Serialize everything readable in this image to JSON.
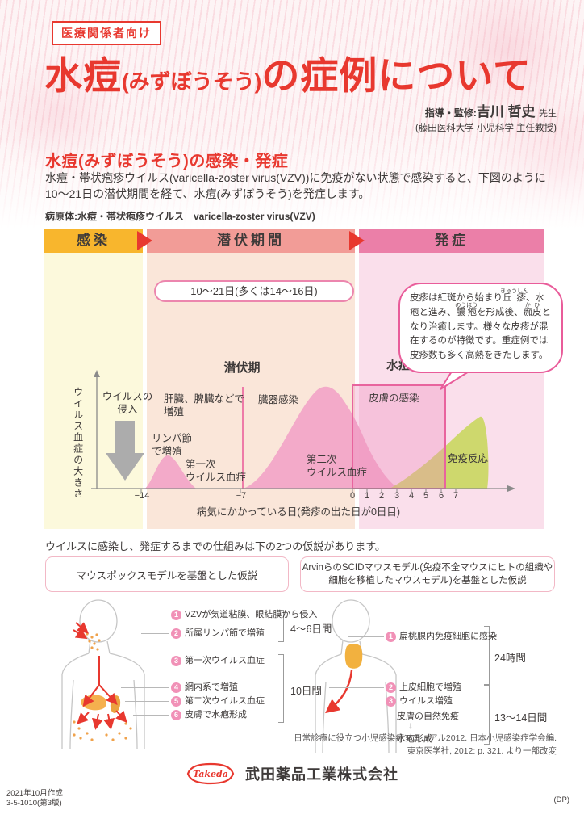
{
  "colors": {
    "accent_red": "#E8382F",
    "phase_infection_header": "#F8B62D",
    "phase_infection_bg": "#FCF9DC",
    "phase_incubation_header": "#F29C97",
    "phase_incubation_bg": "#FAE6D9",
    "phase_onset_header": "#EB7FA8",
    "phase_onset_bg": "#FADFEB",
    "curve_pink": "#F2A3C7",
    "immune_green": "#C3D64E",
    "bubble_border": "#E95C9A",
    "gray_arrow": "#ACACAC"
  },
  "header": {
    "badge": "医療関係者向け",
    "title": {
      "main": "水痘",
      "kana": "(みずぼうそう)",
      "rest": "の症例について"
    },
    "credit": {
      "label": "指導・監修:",
      "name": "吉川 哲史",
      "honorific": "先生",
      "affiliation": "(藤田医科大学 小児科学 主任教授)"
    }
  },
  "intro": {
    "heading": "水痘(みずぼうそう)の感染・発症",
    "body_line1": "水痘・帯状疱疹ウイルス(varicella-zoster virus(VZV))に免疫がない状態で感染すると、下図のように",
    "body_line2": "10〜21日の潜伏期間を経て、水痘(みずぼうそう)を発症します。",
    "pathogen": "病原体:水痘・帯状疱疹ウイルス　varicella-zoster virus(VZV)"
  },
  "diagram": {
    "phase_headers": [
      {
        "label": "感染"
      },
      {
        "label": "潜伏期間"
      },
      {
        "label": "発症"
      }
    ],
    "duration_pill": "10〜21日(多くは14〜16日)",
    "bubble_segments": [
      {
        "t": "皮疹は紅斑から始まり"
      },
      {
        "t": "丘疹",
        "r": "きゅうしん"
      },
      {
        "t": "、水疱と進み、"
      },
      {
        "t": "膿疱",
        "r": "のうほう"
      },
      {
        "t": "を形成後、"
      },
      {
        "t": "痂皮",
        "r": "かひ"
      },
      {
        "t": "となり治癒します。様々な皮疹が混在するのが特徴です。重症例では皮疹数も多く高熱をきたします。"
      }
    ],
    "y_axis_label": "ウイルス血症の大きさ",
    "x_axis_title": "病気にかかっている日(発疹の出た日が0日目)",
    "x_ticks": [
      "−14",
      "−7",
      "0",
      "1",
      "2",
      "3",
      "4",
      "5",
      "6",
      "7"
    ],
    "labels": {
      "virus_entry": "ウイルスの\n侵入",
      "liver": "肝臓、脾臓などで\n増殖",
      "lymph": "リンパ節\nで増殖",
      "viremia1": "第一次\nウイルス血症",
      "latent": "潜伏期",
      "organ": "臓器感染",
      "viremia2": "第二次\nウイルス血症",
      "varicella": "水痘",
      "skin": "皮膚の感染",
      "immune": "免疫反応"
    },
    "approx_curves": {
      "first_viremia": {
        "range_days": [
          -14,
          -10.5
        ],
        "peak_day": -12.5
      },
      "second_viremia": {
        "range_days": [
          -7,
          3
        ],
        "peak_day": -2
      },
      "skin_infection_box_days": [
        0,
        6
      ],
      "immune_response": {
        "range_days": [
          2.5,
          8
        ],
        "peak_day": 7.5
      }
    }
  },
  "hypotheses": {
    "intro": "ウイルスに感染し、発症するまでの仕組みは下の2つの仮説があります。",
    "left": {
      "title": "マウスポックスモデルを基盤とした仮説",
      "steps": [
        {
          "num": "1",
          "text": "VZVが気道粘膜、眼結膜から侵入"
        },
        {
          "num": "2",
          "text": "所属リンパ節で増殖"
        },
        {
          "num": "3",
          "text": "第一次ウイルス血症"
        },
        {
          "num": "4",
          "text": "網内系で増殖"
        },
        {
          "num": "5",
          "text": "第二次ウイルス血症"
        },
        {
          "num": "6",
          "text": "皮膚で水疱形成"
        }
      ],
      "bracket1": "4〜6日間",
      "bracket2": "10日間"
    },
    "right": {
      "title_line1": "ArvinらのSCIDマウスモデル(免疫不全マウスにヒトの組織や",
      "title_line2": "細胞を移植したマウスモデル)を基盤とした仮説",
      "steps": [
        {
          "num": "1",
          "text": "扁桃腺内免疫細胞に感染"
        },
        {
          "num": "2",
          "text": "上皮細胞で増殖"
        },
        {
          "num": "3",
          "text": "ウイルス増殖"
        }
      ],
      "step3_sub": "皮膚の自然免疫",
      "step3_arrow": "↓",
      "step3_result": "水疱形成",
      "bracket1": "24時間",
      "bracket2": "13〜14日間"
    }
  },
  "citation": {
    "line1": "日常診療に役立つ小児感染症マニュアル2012. 日本小児感染症学会編.",
    "line2": "東京医学社, 2012: p. 321. より一部改変"
  },
  "footer": {
    "logo_text": "Takeda",
    "company": "武田薬品工業株式会社",
    "created": "2021年10月作成",
    "code": "3-5-1010(第3版)",
    "mark": "(DP)"
  }
}
